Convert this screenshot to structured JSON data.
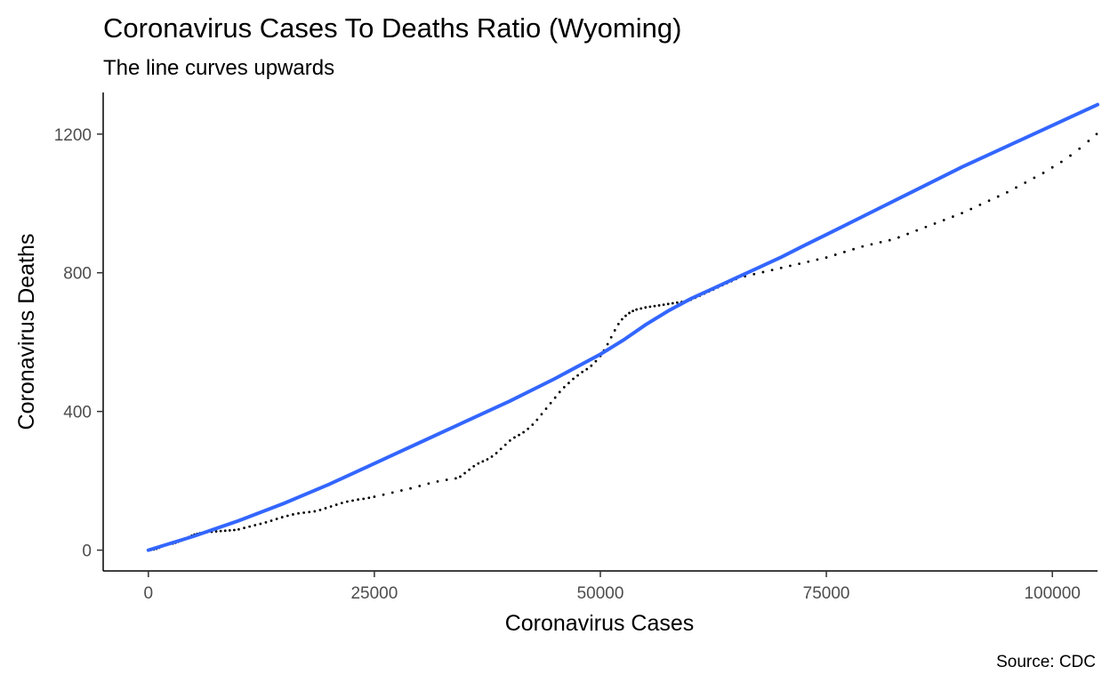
{
  "chart_data": {
    "type": "scatter",
    "title": "Coronavirus Cases To Deaths Ratio (Wyoming)",
    "subtitle": "The line curves upwards",
    "xlabel": "Coronavirus Cases",
    "ylabel": "Coronavirus Deaths",
    "caption": "Source: CDC",
    "xlim": [
      -5000,
      105000
    ],
    "ylim": [
      -60,
      1320
    ],
    "xticks": [
      0,
      25000,
      50000,
      75000,
      100000
    ],
    "yticks": [
      0,
      400,
      800,
      1200
    ],
    "grid": false,
    "colors": {
      "points": "#000000",
      "smooth_line": "#3366FF",
      "axis": "#000000"
    },
    "points": [
      [
        0,
        0
      ],
      [
        300,
        1
      ],
      [
        600,
        2
      ],
      [
        900,
        4
      ],
      [
        1200,
        7
      ],
      [
        1500,
        11
      ],
      [
        1800,
        15
      ],
      [
        2100,
        17
      ],
      [
        2400,
        18
      ],
      [
        2700,
        19
      ],
      [
        3000,
        21
      ],
      [
        3300,
        24
      ],
      [
        3600,
        27
      ],
      [
        3900,
        30
      ],
      [
        4200,
        34
      ],
      [
        4500,
        38
      ],
      [
        4800,
        42
      ],
      [
        5100,
        45
      ],
      [
        5400,
        47
      ],
      [
        5700,
        49
      ],
      [
        6000,
        50
      ],
      [
        6500,
        52
      ],
      [
        7000,
        53
      ],
      [
        7500,
        54
      ],
      [
        8000,
        55
      ],
      [
        8500,
        56
      ],
      [
        9000,
        57
      ],
      [
        9500,
        58
      ],
      [
        10000,
        60
      ],
      [
        10600,
        64
      ],
      [
        11200,
        68
      ],
      [
        11800,
        72
      ],
      [
        12400,
        76
      ],
      [
        13000,
        80
      ],
      [
        13600,
        85
      ],
      [
        14200,
        90
      ],
      [
        14800,
        95
      ],
      [
        15400,
        99
      ],
      [
        16000,
        103
      ],
      [
        16600,
        106
      ],
      [
        17200,
        108
      ],
      [
        17800,
        110
      ],
      [
        18400,
        112
      ],
      [
        19000,
        116
      ],
      [
        19600,
        121
      ],
      [
        20200,
        126
      ],
      [
        20800,
        131
      ],
      [
        21400,
        136
      ],
      [
        22000,
        140
      ],
      [
        22600,
        143
      ],
      [
        23200,
        146
      ],
      [
        23800,
        148
      ],
      [
        24400,
        151
      ],
      [
        25000,
        154
      ],
      [
        26000,
        160
      ],
      [
        27000,
        166
      ],
      [
        28000,
        172
      ],
      [
        29000,
        178
      ],
      [
        30000,
        185
      ],
      [
        31000,
        192
      ],
      [
        32000,
        198
      ],
      [
        33000,
        203
      ],
      [
        34000,
        207
      ],
      [
        34500,
        212
      ],
      [
        35000,
        222
      ],
      [
        35500,
        232
      ],
      [
        36000,
        242
      ],
      [
        36500,
        250
      ],
      [
        37000,
        256
      ],
      [
        37500,
        262
      ],
      [
        38000,
        270
      ],
      [
        38500,
        280
      ],
      [
        39000,
        292
      ],
      [
        39500,
        304
      ],
      [
        40000,
        316
      ],
      [
        40500,
        325
      ],
      [
        41000,
        332
      ],
      [
        41500,
        340
      ],
      [
        42000,
        350
      ],
      [
        42500,
        362
      ],
      [
        43000,
        376
      ],
      [
        43500,
        392
      ],
      [
        44000,
        408
      ],
      [
        44500,
        424
      ],
      [
        45000,
        440
      ],
      [
        45500,
        456
      ],
      [
        46000,
        470
      ],
      [
        46500,
        482
      ],
      [
        47000,
        494
      ],
      [
        47500,
        504
      ],
      [
        48000,
        514
      ],
      [
        48500,
        522
      ],
      [
        49000,
        532
      ],
      [
        49500,
        545
      ],
      [
        50000,
        560
      ],
      [
        50400,
        576
      ],
      [
        50800,
        594
      ],
      [
        51200,
        614
      ],
      [
        51600,
        634
      ],
      [
        52000,
        652
      ],
      [
        52400,
        666
      ],
      [
        52800,
        676
      ],
      [
        53200,
        684
      ],
      [
        53600,
        690
      ],
      [
        54000,
        694
      ],
      [
        54500,
        697
      ],
      [
        55000,
        700
      ],
      [
        55500,
        702
      ],
      [
        56000,
        704
      ],
      [
        56500,
        706
      ],
      [
        57000,
        708
      ],
      [
        57500,
        710
      ],
      [
        58000,
        712
      ],
      [
        58500,
        714
      ],
      [
        59000,
        716
      ],
      [
        59500,
        718
      ],
      [
        60000,
        722
      ],
      [
        60500,
        728
      ],
      [
        61000,
        734
      ],
      [
        61500,
        740
      ],
      [
        62000,
        746
      ],
      [
        62500,
        752
      ],
      [
        63000,
        758
      ],
      [
        63500,
        764
      ],
      [
        64000,
        770
      ],
      [
        64500,
        776
      ],
      [
        65000,
        782
      ],
      [
        66000,
        790
      ],
      [
        67000,
        796
      ],
      [
        68000,
        802
      ],
      [
        69000,
        808
      ],
      [
        70000,
        814
      ],
      [
        71000,
        820
      ],
      [
        72000,
        826
      ],
      [
        73000,
        832
      ],
      [
        74000,
        838
      ],
      [
        75000,
        844
      ],
      [
        76000,
        852
      ],
      [
        77000,
        860
      ],
      [
        78000,
        868
      ],
      [
        79000,
        876
      ],
      [
        80000,
        882
      ],
      [
        81000,
        888
      ],
      [
        82000,
        894
      ],
      [
        83000,
        902
      ],
      [
        84000,
        912
      ],
      [
        85000,
        922
      ],
      [
        86000,
        932
      ],
      [
        87000,
        942
      ],
      [
        88000,
        952
      ],
      [
        89000,
        962
      ],
      [
        90000,
        972
      ],
      [
        91000,
        984
      ],
      [
        92000,
        996
      ],
      [
        93000,
        1008
      ],
      [
        94000,
        1020
      ],
      [
        95000,
        1032
      ],
      [
        96000,
        1046
      ],
      [
        97000,
        1060
      ],
      [
        98000,
        1074
      ],
      [
        99000,
        1088
      ],
      [
        100000,
        1104
      ],
      [
        101000,
        1120
      ],
      [
        102000,
        1138
      ],
      [
        103000,
        1158
      ],
      [
        104000,
        1180
      ],
      [
        104900,
        1200
      ]
    ],
    "smooth_line": [
      [
        0,
        0
      ],
      [
        5000,
        40
      ],
      [
        10000,
        85
      ],
      [
        15000,
        135
      ],
      [
        20000,
        190
      ],
      [
        25000,
        250
      ],
      [
        30000,
        310
      ],
      [
        35000,
        370
      ],
      [
        40000,
        430
      ],
      [
        45000,
        495
      ],
      [
        50000,
        565
      ],
      [
        52500,
        605
      ],
      [
        55000,
        650
      ],
      [
        57500,
        690
      ],
      [
        60000,
        725
      ],
      [
        62500,
        755
      ],
      [
        65000,
        785
      ],
      [
        67500,
        815
      ],
      [
        70000,
        845
      ],
      [
        72500,
        878
      ],
      [
        75000,
        910
      ],
      [
        80000,
        975
      ],
      [
        85000,
        1040
      ],
      [
        90000,
        1105
      ],
      [
        95000,
        1165
      ],
      [
        100000,
        1225
      ],
      [
        105000,
        1285
      ]
    ]
  }
}
